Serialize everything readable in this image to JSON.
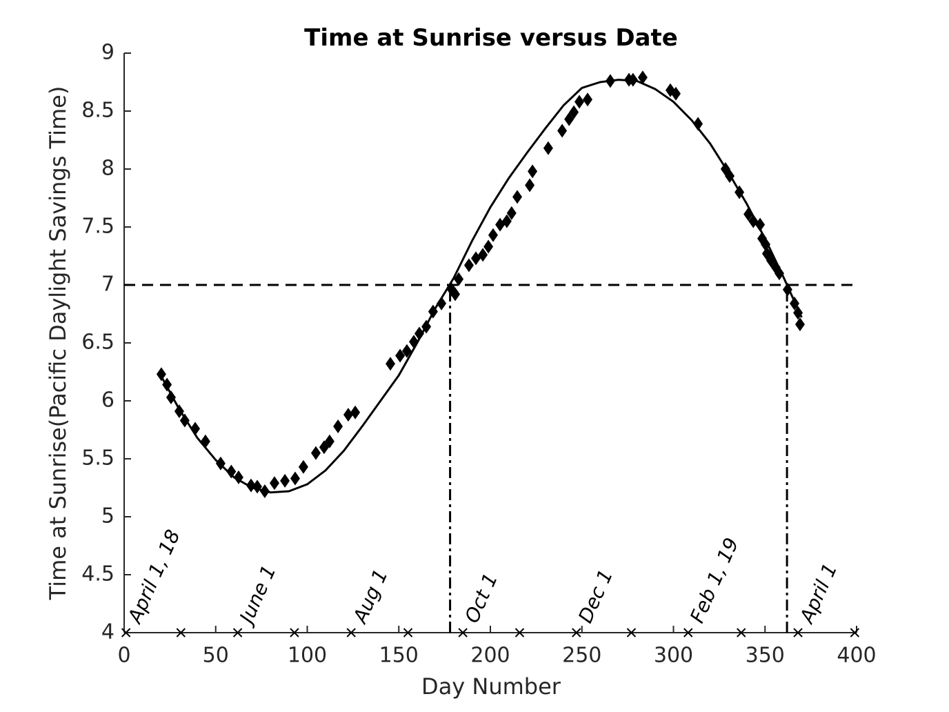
{
  "chart_data": {
    "type": "scatter",
    "title": "Time at Sunrise versus Date",
    "xlabel": "Day Number",
    "ylabel": "Time at Sunrise(Pacific Daylight Savings Time)",
    "xlim": [
      0,
      400
    ],
    "ylim": [
      4,
      9
    ],
    "xticks": [
      0,
      50,
      100,
      150,
      200,
      250,
      300,
      350,
      400
    ],
    "yticks": [
      4,
      4.5,
      5,
      5.5,
      6,
      6.5,
      7,
      7.5,
      8,
      8.5,
      9
    ],
    "series": [
      {
        "type": "scatter",
        "marker": "diamond",
        "color": "#000000",
        "x": [
          20.3,
          23.4,
          25.6,
          30.1,
          33.1,
          38.8,
          44.4,
          52.7,
          58.5,
          62.5,
          69.3,
          72.7,
          76.8,
          82.1,
          87.8,
          93.4,
          97.9,
          104.7,
          109.2,
          112.2,
          116.8,
          122.4,
          126.2,
          145.4,
          150.7,
          154.4,
          158.2,
          161.2,
          165.0,
          168.7,
          173.3,
          178.9,
          180.8,
          182.7,
          188.3,
          192.1,
          195.9,
          198.9,
          201.5,
          205.3,
          209.0,
          211.6,
          214.7,
          221.5,
          223.0,
          231.6,
          239.2,
          243.0,
          245.6,
          248.6,
          253.1,
          265.5,
          275.7,
          277.9,
          283.2,
          298.3,
          301.3,
          313.4,
          328.4,
          330.7,
          336.0,
          340.9,
          343.6,
          347.3,
          348.4,
          350.3,
          351.0,
          353.3,
          355.9,
          357.8,
          362.3,
          366.1,
          368.0,
          369.1
        ],
        "values": [
          6.23,
          6.14,
          6.03,
          5.91,
          5.83,
          5.76,
          5.65,
          5.46,
          5.39,
          5.34,
          5.27,
          5.26,
          5.22,
          5.29,
          5.31,
          5.33,
          5.43,
          5.55,
          5.6,
          5.65,
          5.78,
          5.88,
          5.9,
          6.32,
          6.39,
          6.43,
          6.51,
          6.58,
          6.64,
          6.77,
          6.84,
          6.96,
          6.92,
          7.05,
          7.17,
          7.23,
          7.26,
          7.33,
          7.43,
          7.52,
          7.55,
          7.62,
          7.76,
          7.86,
          7.98,
          8.18,
          8.33,
          8.43,
          8.49,
          8.58,
          8.6,
          8.76,
          8.77,
          8.77,
          8.79,
          8.68,
          8.65,
          8.39,
          8.0,
          7.94,
          7.8,
          7.61,
          7.55,
          7.52,
          7.4,
          7.35,
          7.27,
          7.21,
          7.15,
          7.1,
          6.96,
          6.84,
          6.76,
          6.66
        ]
      },
      {
        "type": "line",
        "color": "#000000",
        "x": [
          20,
          30,
          40,
          50,
          60,
          70,
          80,
          90,
          100,
          110,
          120,
          130,
          140,
          150,
          160,
          170,
          180,
          190,
          200,
          210,
          220,
          230,
          240,
          250,
          260,
          270,
          280,
          290,
          300,
          310,
          320,
          330,
          340,
          350,
          360,
          370
        ],
        "values": [
          6.22,
          5.93,
          5.68,
          5.49,
          5.34,
          5.25,
          5.21,
          5.22,
          5.28,
          5.4,
          5.57,
          5.78,
          6.0,
          6.22,
          6.5,
          6.8,
          7.06,
          7.38,
          7.67,
          7.92,
          8.14,
          8.35,
          8.55,
          8.7,
          8.75,
          8.77,
          8.76,
          8.69,
          8.58,
          8.42,
          8.22,
          7.97,
          7.7,
          7.4,
          7.07,
          6.72
        ]
      }
    ],
    "hline": {
      "y": 7,
      "style": "dashed"
    },
    "vlines": {
      "x": [
        178,
        362
      ],
      "style": "dashdot"
    },
    "month_markers": [
      1,
      31,
      62,
      93,
      124,
      155,
      185,
      216,
      247,
      277,
      308,
      337,
      368,
      399
    ],
    "date_labels": [
      {
        "x": 1,
        "text": "April 1, 18"
      },
      {
        "x": 62,
        "text": "June 1"
      },
      {
        "x": 124,
        "text": "Aug 1"
      },
      {
        "x": 185,
        "text": "Oct 1"
      },
      {
        "x": 247,
        "text": "Dec 1"
      },
      {
        "x": 308,
        "text": "Feb 1, 19"
      },
      {
        "x": 368,
        "text": "April 1"
      }
    ]
  }
}
